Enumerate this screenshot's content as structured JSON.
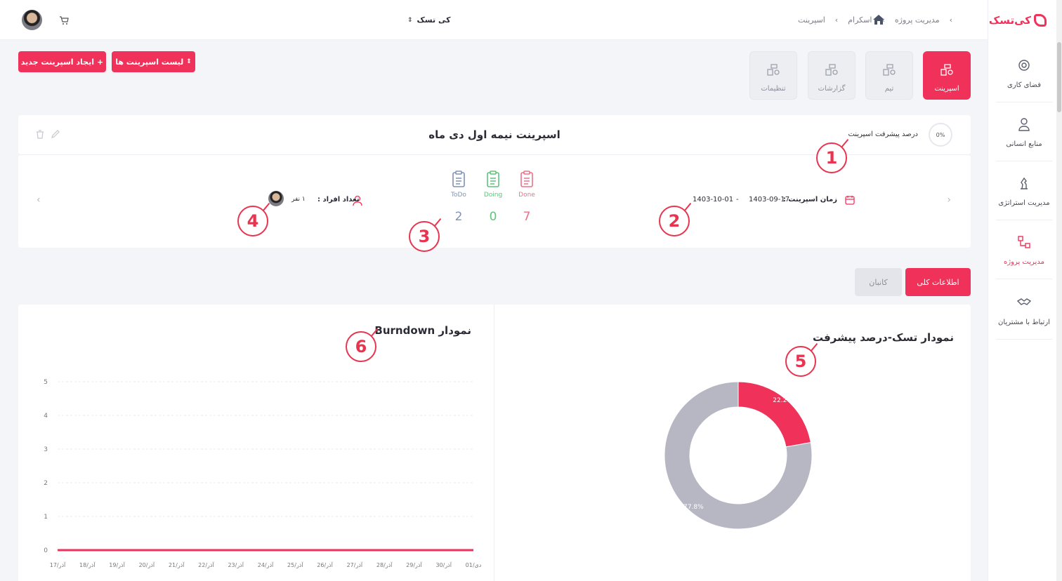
{
  "app": {
    "logo_text": "کی‌تسک",
    "brand_color": "#f0325a"
  },
  "sidebar": {
    "items": [
      {
        "label": "فضای کاری",
        "icon": "workspace-icon"
      },
      {
        "label": "منابع انسانی",
        "icon": "user-icon"
      },
      {
        "label": "مدیریت استراتژی",
        "icon": "strategy-icon"
      },
      {
        "label": "مدیریت پروژه",
        "icon": "project-icon",
        "active": true
      },
      {
        "label": "ارتباط با مشتریان",
        "icon": "handshake-icon"
      }
    ]
  },
  "topbar": {
    "workspace": "کی تسک",
    "breadcrumb": [
      "مدیریت پروژه",
      "اسکرام",
      "اسپرینت"
    ]
  },
  "actions": {
    "new_sprint": "ایجاد اسپرینت جدید",
    "sprint_list": "لیست اسپرینت ها"
  },
  "tiles": [
    {
      "label": "اسپرینت",
      "active": true
    },
    {
      "label": "تیم"
    },
    {
      "label": "گزارشات"
    },
    {
      "label": "تنظیمات"
    }
  ],
  "sprint": {
    "title": "اسپرینت نیمه اول دی ماه",
    "progress_label": "درصد پیشرفت اسپرینت",
    "progress_value": "0%",
    "time_label": "زمان اسپرینت :",
    "start_date": "1403-09-17",
    "end_date": "1403-10-01",
    "separator": "-",
    "members_label": "تعداد افراد :",
    "members_count": "۱ نفر",
    "stats": {
      "done": {
        "label": "Done",
        "value": "7"
      },
      "doing": {
        "label": "Doing",
        "value": "0"
      },
      "todo": {
        "label": "ToDo",
        "value": "2"
      }
    }
  },
  "view_tabs": {
    "general": "اطلاعات کلی",
    "kanban": "کانبان"
  },
  "charts": {
    "pie_title": "نمودار تسک-درصد پیشرفت",
    "burndown_title": "نمودار Burndown"
  },
  "chart_data": [
    {
      "type": "pie",
      "title": "نمودار تسک-درصد پیشرفت",
      "slices": [
        {
          "label": "22.2%",
          "value": 22.2,
          "color": "#f0325a"
        },
        {
          "label": "77.8%",
          "value": 77.8,
          "color": "#b6b7c3"
        }
      ]
    },
    {
      "type": "line",
      "title": "نمودار Burndown",
      "categories": [
        "آذر/17",
        "آذر/18",
        "آذر/19",
        "آذر/20",
        "آذر/21",
        "آذر/22",
        "آذر/23",
        "آذر/24",
        "آذر/25",
        "آذر/26",
        "آذر/27",
        "آذر/28",
        "آذر/29",
        "آذر/30",
        "دی/01"
      ],
      "series": [
        {
          "values": [
            0,
            0,
            0,
            0,
            0,
            0,
            0,
            0,
            0,
            0,
            0,
            0,
            0,
            0,
            0
          ],
          "color": "#f0325a"
        }
      ],
      "ylim": [
        0,
        5
      ],
      "yticks": [
        "0",
        "1",
        "2",
        "3",
        "4",
        "5"
      ],
      "grid": true
    }
  ],
  "markers": [
    "1",
    "2",
    "3",
    "4",
    "5",
    "6"
  ]
}
